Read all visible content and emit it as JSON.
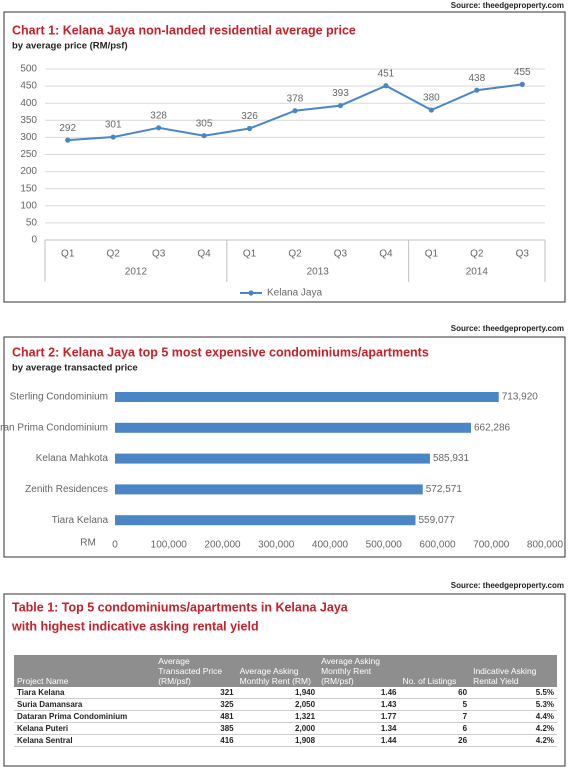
{
  "chart_data": [
    {
      "type": "line",
      "source": "Source: theedgeproperty.com",
      "title": "Chart 1: Kelana Jaya non-landed residential average price",
      "subtitle": "by average price (RM/psf)",
      "category_groups": [
        {
          "label": "2012",
          "categories": [
            "Q1",
            "Q2",
            "Q3",
            "Q4"
          ]
        },
        {
          "label": "2013",
          "categories": [
            "Q1",
            "Q2",
            "Q3",
            "Q4"
          ]
        },
        {
          "label": "2014",
          "categories": [
            "Q1",
            "Q2",
            "Q3"
          ]
        }
      ],
      "series": [
        {
          "name": "Kelana Jaya",
          "color": "#4a86c5",
          "values": [
            292,
            301,
            328,
            305,
            326,
            378,
            393,
            451,
            380,
            438,
            455
          ]
        }
      ],
      "ylim": [
        0,
        500
      ],
      "yticks": [
        0,
        50,
        100,
        150,
        200,
        250,
        300,
        350,
        400,
        450,
        500
      ],
      "grid": true,
      "legend": "bottom"
    },
    {
      "type": "hbar",
      "source": "Source: theedgeproperty.com",
      "title": "Chart 2: Kelana Jaya top 5 most expensive condominiums/apartments",
      "subtitle": "by average transacted price",
      "categories": [
        "Sterling Condominium",
        "Dataran Prima Condominium",
        "Kelana Mahkota",
        "Zenith Residences",
        "Tiara Kelana"
      ],
      "values": [
        713920,
        662286,
        585931,
        572571,
        559077
      ],
      "value_labels": [
        "713,920",
        "662,286",
        "585,931",
        "572,571",
        "559,077"
      ],
      "color": "#4a86c5",
      "xlabel": "RM",
      "xlim": [
        0,
        800000
      ],
      "xticks": [
        0,
        {
          "value": 100000,
          "label": "100,000"
        },
        {
          "value": 200000,
          "label": "200,000"
        },
        {
          "value": 300000,
          "label": "300,000"
        },
        {
          "value": 400000,
          "label": "400,000"
        },
        {
          "value": 500000,
          "label": "500,000"
        },
        {
          "value": 600000,
          "label": "600,000"
        },
        {
          "value": 700000,
          "label": "700,000"
        },
        {
          "value": 800000,
          "label": "800,000"
        }
      ],
      "grid": false
    }
  ],
  "table": {
    "source": "Source: theedgeproperty.com",
    "title_lines": [
      "Table 1: Top 5 condominiums/apartments in Kelana Jaya",
      "with highest indicative asking rental yield"
    ],
    "columns": [
      "Project Name",
      "Average Transacted Price (RM/psf)",
      "Average Asking Monthly Rent (RM)",
      "Average Asking Monthly Rent (RM/psf)",
      "No. of Listings",
      "Indicative Asking Rental Yield"
    ],
    "rows": [
      [
        "Tiara Kelana",
        "321",
        "1,940",
        "1.46",
        "60",
        "5.5%"
      ],
      [
        "Suria Damansara",
        "325",
        "2,050",
        "1.43",
        "5",
        "5.3%"
      ],
      [
        "Dataran Prima Condominium",
        "481",
        "1,321",
        "1.77",
        "7",
        "4.4%"
      ],
      [
        "Kelana Puteri",
        "385",
        "2,000",
        "1.34",
        "6",
        "4.2%"
      ],
      [
        "Kelana Sentral",
        "416",
        "1,908",
        "1.44",
        "26",
        "4.2%"
      ]
    ]
  }
}
